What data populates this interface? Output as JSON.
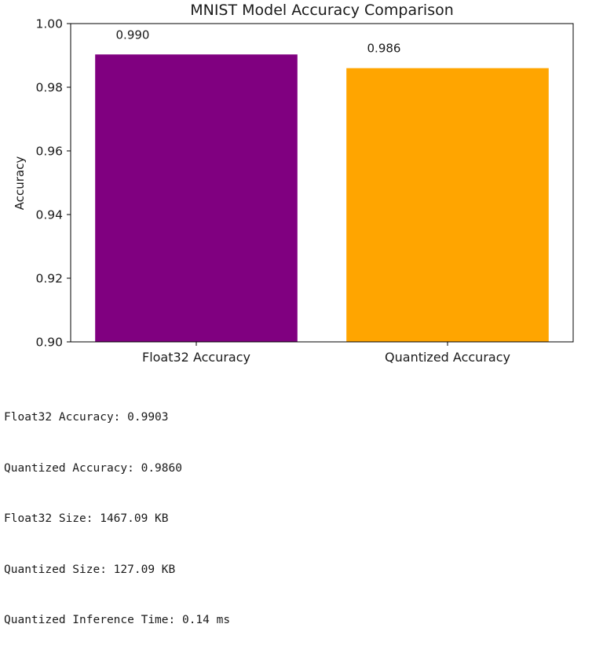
{
  "chart_data": {
    "type": "bar",
    "title": "MNIST Model Accuracy Comparison",
    "xlabel": "",
    "ylabel": "Accuracy",
    "categories": [
      "Float32 Accuracy",
      "Quantized Accuracy"
    ],
    "values": [
      0.9903,
      0.986
    ],
    "value_labels": [
      "0.990",
      "0.986"
    ],
    "colors": [
      "#800080",
      "#FFA500"
    ],
    "ylim": [
      0.9,
      1.0
    ],
    "yticks": [
      0.9,
      0.92,
      0.94,
      0.96,
      0.98,
      1.0
    ],
    "ytick_labels": [
      "0.90",
      "0.92",
      "0.94",
      "0.96",
      "0.98",
      "1.00"
    ],
    "grid": false,
    "legend": "none"
  },
  "output_lines": [
    "Float32 Accuracy: 0.9903",
    "Quantized Accuracy: 0.9860",
    "Float32 Size: 1467.09 KB",
    "Quantized Size: 127.09 KB",
    "Quantized Inference Time: 0.14 ms"
  ]
}
